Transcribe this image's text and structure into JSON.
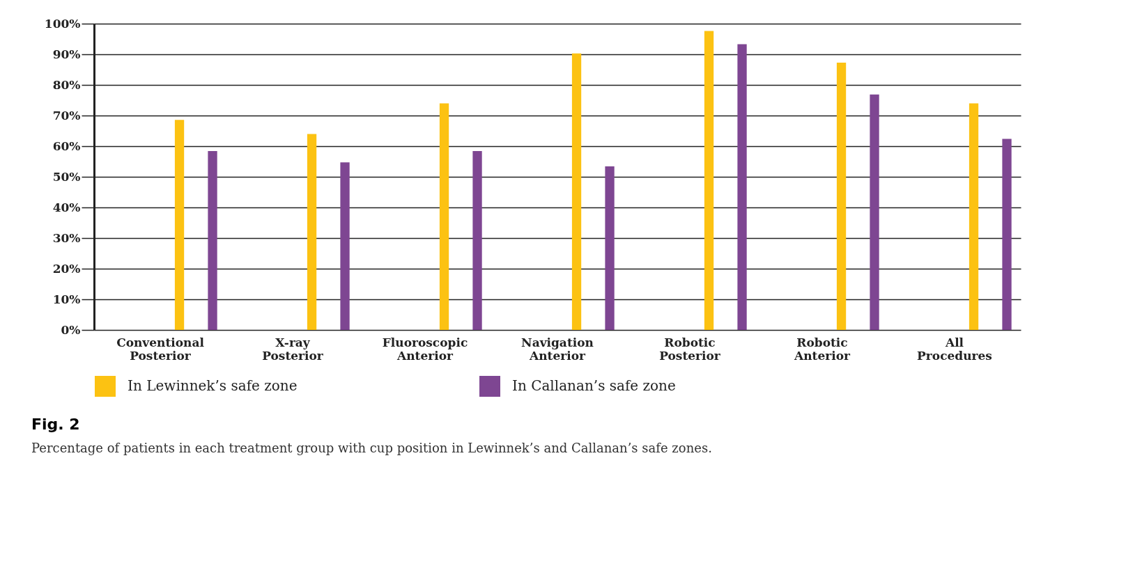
{
  "chart_data": {
    "type": "bar",
    "title": "Fig. 2",
    "subtitle": "Percentage of patients in each treatment group with cup position in Lewinnek’s and Callanan’s safe zones.",
    "categories": [
      "Conventional Posterior",
      "X-ray Posterior",
      "Fluoroscopic Anterior",
      "Navigation Anterior",
      "Robotic Posterior",
      "Robotic Anterior",
      "All Procedures"
    ],
    "series": [
      {
        "name": "In Lewinnek’s safe zone",
        "color": "#fcc212",
        "values": [
          68.6,
          64.0,
          74.0,
          90.3,
          97.6,
          87.3,
          74.0
        ]
      },
      {
        "name": "In Callanan’s safe zone",
        "color": "#7e4692",
        "values": [
          58.4,
          54.7,
          58.4,
          53.4,
          93.3,
          76.9,
          62.4
        ]
      }
    ],
    "ylim": [
      0,
      100
    ],
    "yticks": [
      {
        "value": 0,
        "label": "0%"
      },
      {
        "value": 10,
        "label": "10%"
      },
      {
        "value": 20,
        "label": "20%"
      },
      {
        "value": 30,
        "label": "30%"
      },
      {
        "value": 40,
        "label": "40%"
      },
      {
        "value": 50,
        "label": "50%"
      },
      {
        "value": 60,
        "label": "60%"
      },
      {
        "value": 70,
        "label": "70%"
      },
      {
        "value": 80,
        "label": "80%"
      },
      {
        "value": 90,
        "label": "90%"
      },
      {
        "value": 100,
        "label": "100%"
      }
    ],
    "grid": "y",
    "legend": "bottom"
  }
}
